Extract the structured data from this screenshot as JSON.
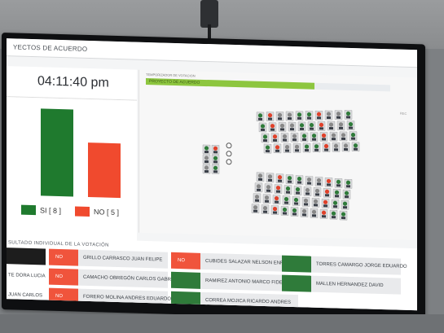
{
  "screen": {
    "title": "YECTOS DE ACUERDO",
    "clock": "04:11:40 pm",
    "timer_label": "TEMPORIZADOR DE VOTACIÓN",
    "progress_text": "PROYECTO DE ACUERDO",
    "progress_fraction": 0.69,
    "rec_label": "REC"
  },
  "chart_data": {
    "type": "bar",
    "categories": [
      "SI",
      "NO"
    ],
    "values": [
      8,
      5
    ],
    "colors": [
      "#1f7a2e",
      "#f04a2e"
    ],
    "ylim": [
      0,
      8.6
    ],
    "legend": [
      {
        "label": "SI [ 8 ]",
        "color": "#1f7a2e"
      },
      {
        "label": "NO [ 5 ]",
        "color": "#f04a2e"
      }
    ]
  },
  "results": {
    "title": "SULTADO INDIVIDUAL DE LA VOTACIÓN",
    "rows": [
      [
        {
          "name": "",
          "vote": ""
        },
        {
          "name": "GRILLO CARRASCO JUAN FELIPE",
          "vote": "NO"
        },
        {
          "name": "CUBIDES SALAZAR NELSON ENRIQUE",
          "vote": "NO"
        },
        {
          "name": "TORRES CAMARGO JORGE EDUARDO",
          "vote": "SI"
        }
      ],
      [
        {
          "name": "TE DORA LUCIA",
          "vote": ""
        },
        {
          "name": "CAMACHO OBREGÓN CARLOS GABRIEL",
          "vote": "NO"
        },
        {
          "name": "RAMIREZ ANTONIO MARCO FIDEL",
          "vote": "SI"
        },
        {
          "name": "MALLEN HERNANDEZ DAVID",
          "vote": "SI"
        }
      ],
      [
        {
          "name": "JUAN CARLOS",
          "vote": ""
        },
        {
          "name": "FORERO MOLINA ANDRES EDUARDO",
          "vote": "NO"
        },
        {
          "name": "CORREA MOJICA RICARDO ANDRES",
          "vote": "SI"
        },
        {
          "name": "",
          "vote": ""
        }
      ]
    ]
  }
}
